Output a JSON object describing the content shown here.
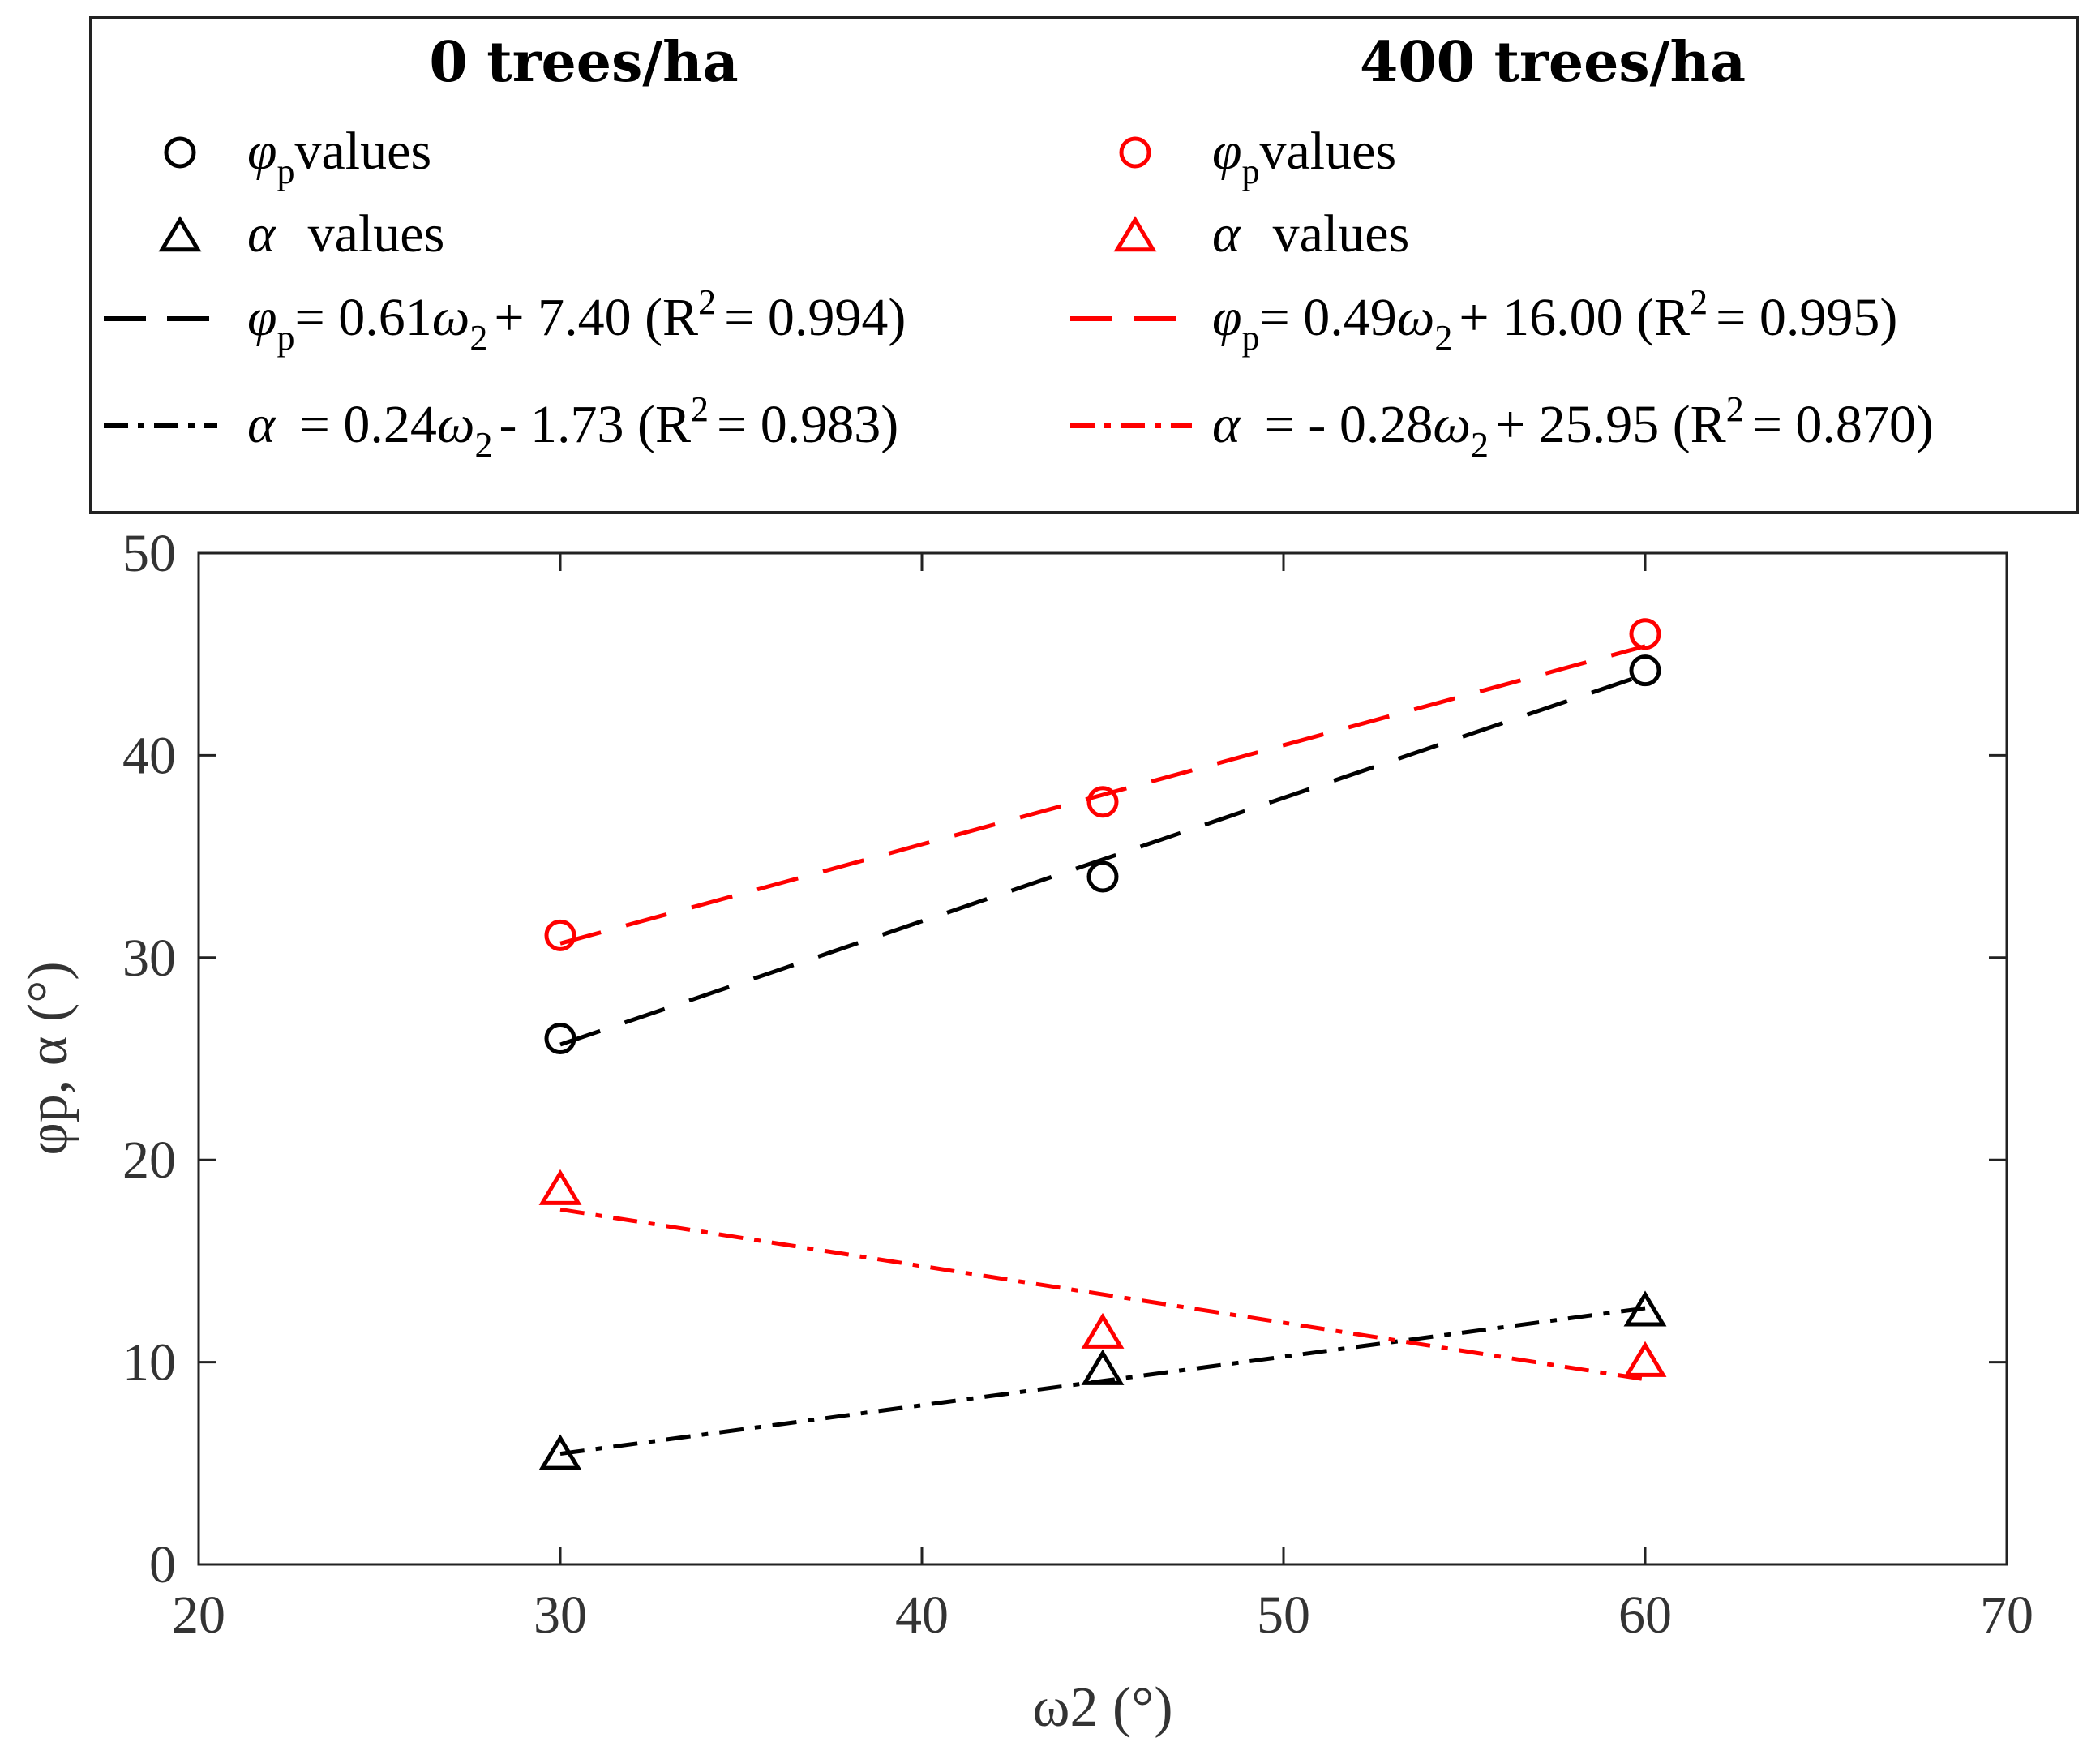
{
  "chart_data": {
    "type": "scatter",
    "title": "",
    "xlabel": "ω2 (°)",
    "ylabel": "φp, α (°)",
    "xlim": [
      20,
      70
    ],
    "ylim": [
      0,
      50
    ],
    "xticks": [
      "20",
      "30",
      "40",
      "50",
      "60",
      "70"
    ],
    "yticks": [
      "0",
      "10",
      "20",
      "30",
      "40",
      "50"
    ],
    "x": [
      30,
      45,
      60
    ],
    "legend": {
      "group_titles": [
        "0 trees/ha",
        "400 trees/ha"
      ],
      "entries": [
        {
          "id": "phi0",
          "symbol": "φ",
          "sub": "p",
          "text": "values",
          "color": "#000000",
          "marker": "circle"
        },
        {
          "id": "alpha0",
          "symbol": "α",
          "text": "values",
          "color": "#000000",
          "marker": "triangle"
        },
        {
          "id": "phifit0",
          "symbol": "φ",
          "sub": "p",
          "eq_a": "= 0.61",
          "eq_b": "+ 7.40 (R",
          "eq_c": "= 0.994)",
          "color": "#000000",
          "line": "dashed"
        },
        {
          "id": "alphafit0",
          "symbol": "α",
          "eq_a": "= 0.24",
          "eq_b": "- 1.73 (R",
          "eq_c": "= 0.983)",
          "color": "#000000",
          "line": "dashdot"
        },
        {
          "id": "phi400",
          "symbol": "φ",
          "sub": "p",
          "text": "values",
          "color": "#ff0000",
          "marker": "circle"
        },
        {
          "id": "alpha400",
          "symbol": "α",
          "text": "values",
          "color": "#ff0000",
          "marker": "triangle"
        },
        {
          "id": "phifit400",
          "symbol": "φ",
          "sub": "p",
          "eq_a": "= 0.49",
          "eq_b": "+ 16.00 (R",
          "eq_c": "= 0.995)",
          "color": "#ff0000",
          "line": "dashed"
        },
        {
          "id": "alphafit400",
          "symbol": "α",
          "eq_a": "= - 0.28",
          "eq_b": "+ 25.95 (R",
          "eq_c": "= 0.870)",
          "color": "#ff0000",
          "line": "dashdot"
        }
      ],
      "omega": "ω",
      "omega_sub": "2",
      "r2_sup": "2"
    },
    "series": [
      {
        "name": "φp values (0 trees/ha)",
        "marker": "circle",
        "color": "#000000",
        "values": [
          26.0,
          34.0,
          44.2
        ]
      },
      {
        "name": "α values (0 trees/ha)",
        "marker": "triangle",
        "color": "#000000",
        "values": [
          5.4,
          9.6,
          12.5
        ]
      },
      {
        "name": "φp values (400 trees/ha)",
        "marker": "circle",
        "color": "#ff0000",
        "values": [
          31.1,
          37.7,
          46.0
        ]
      },
      {
        "name": "α values (400 trees/ha)",
        "marker": "triangle",
        "color": "#ff0000",
        "values": [
          18.5,
          11.4,
          10.0
        ]
      }
    ],
    "fits": [
      {
        "name": "φp fit (0 trees/ha)",
        "slope": 0.61,
        "intercept": 7.4,
        "r2": 0.994,
        "color": "#000000",
        "style": "dashed",
        "x_range": [
          30,
          60
        ]
      },
      {
        "name": "α fit (0 trees/ha)",
        "slope": 0.24,
        "intercept": -1.73,
        "r2": 0.983,
        "color": "#000000",
        "style": "dashdot",
        "x_range": [
          30,
          60
        ]
      },
      {
        "name": "φp fit (400 trees/ha)",
        "slope": 0.49,
        "intercept": 16.0,
        "r2": 0.995,
        "color": "#ff0000",
        "style": "dashed",
        "x_range": [
          30,
          60
        ]
      },
      {
        "name": "α fit (400 trees/ha)",
        "slope": -0.28,
        "intercept": 25.95,
        "r2": 0.87,
        "color": "#ff0000",
        "style": "dashdot",
        "x_range": [
          30,
          60
        ]
      }
    ]
  }
}
